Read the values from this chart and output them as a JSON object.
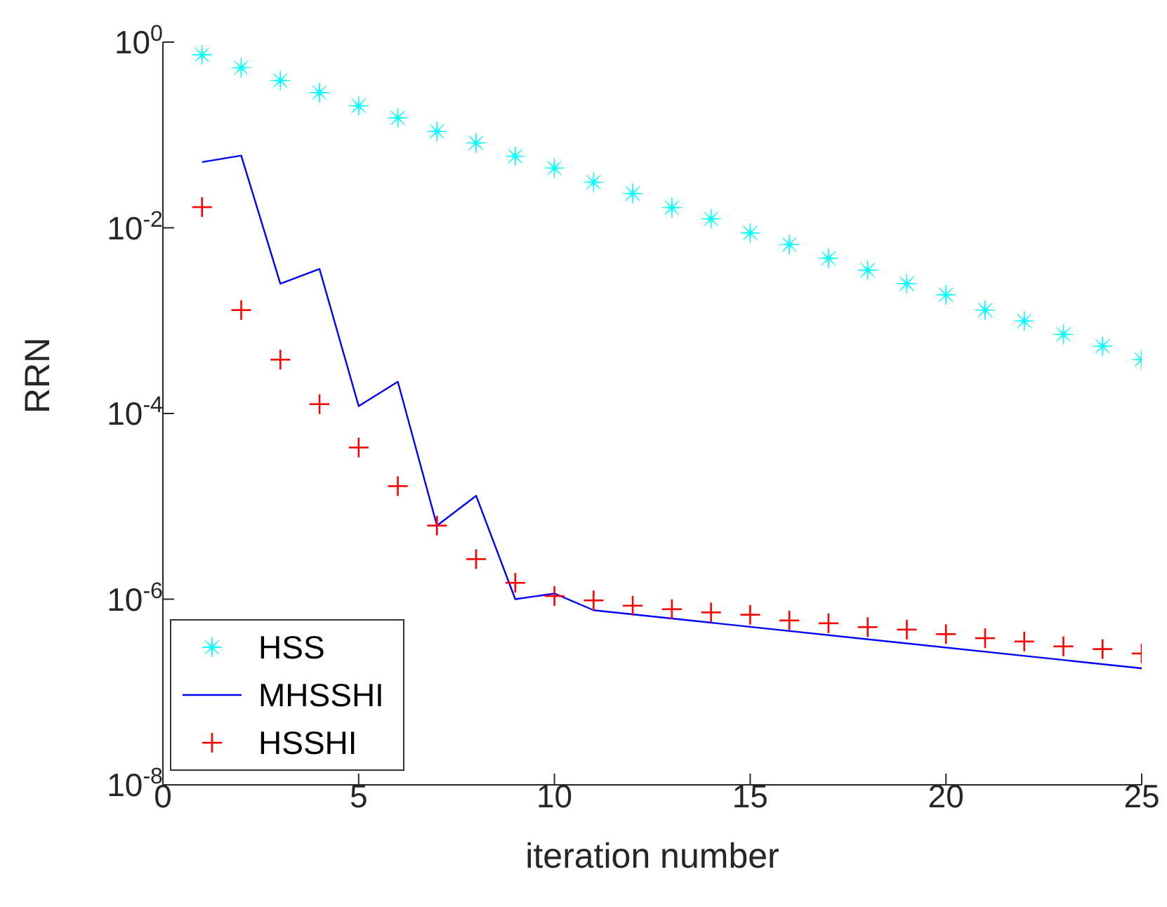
{
  "chart_data": {
    "type": "scatter",
    "xlabel": "iteration number",
    "ylabel": "RRN",
    "xlim": [
      0,
      25
    ],
    "xticks": [
      0,
      5,
      10,
      15,
      20,
      25
    ],
    "ylim": [
      1e-08,
      1
    ],
    "log": "y",
    "yticks": [
      {
        "value": 1e-08,
        "label": "10$^{-8}$"
      },
      {
        "value": 1e-06,
        "label": "10$^{-6}$"
      },
      {
        "value": 0.0001,
        "label": "10$^{-4}$"
      },
      {
        "value": 0.01,
        "label": "10$^{-2}$"
      },
      {
        "value": 1,
        "label": "10$^{0}$"
      }
    ],
    "grid": false,
    "legend": "bottom left",
    "series": [
      {
        "name": "HSS",
        "marker": "star",
        "color": "#00ffff",
        "x": [
          1,
          2,
          3,
          4,
          5,
          6,
          7,
          8,
          9,
          10,
          11,
          12,
          13,
          14,
          15,
          16,
          17,
          18,
          19,
          20,
          21,
          22,
          23,
          24,
          25
        ],
        "values": [
          0.73,
          0.53,
          0.386,
          0.286,
          0.206,
          0.153,
          0.109,
          0.082,
          0.059,
          0.044,
          0.031,
          0.0234,
          0.0165,
          0.0125,
          0.0088,
          0.0066,
          0.0047,
          0.0035,
          0.0025,
          0.0019,
          0.0013,
          0.00099,
          0.00071,
          0.00053,
          0.00038
        ]
      },
      {
        "name": "MHSSHI",
        "type": "line",
        "marker": "none",
        "line_style": "solid",
        "color": "#0000ff",
        "x": [
          1,
          2,
          3,
          4,
          5,
          6,
          7,
          8,
          9,
          10,
          11,
          25
        ],
        "values": [
          0.051,
          0.06,
          0.0025,
          0.0036,
          0.00012,
          0.00022,
          6.2e-06,
          1.3e-05,
          1e-06,
          1.15e-06,
          7.6e-07,
          1.8e-07
        ]
      },
      {
        "name": "HSSHI",
        "marker": "cross",
        "color": "#ff0000",
        "x": [
          1,
          2,
          3,
          4,
          5,
          6,
          7,
          8,
          9,
          10,
          11,
          12,
          13,
          14,
          15,
          16,
          17,
          18,
          19,
          20,
          21,
          22,
          23,
          24,
          25
        ],
        "values": [
          0.0167,
          0.0013,
          0.00038,
          0.000126,
          4.3e-05,
          1.65e-05,
          6.2e-06,
          2.7e-06,
          1.5e-06,
          1.08e-06,
          9.7e-07,
          8.5e-07,
          7.8e-07,
          7.2e-07,
          6.8e-07,
          5.9e-07,
          5.5e-07,
          5e-07,
          4.7e-07,
          4.2e-07,
          3.8e-07,
          3.5e-07,
          3.1e-07,
          2.9e-07,
          2.6e-07
        ]
      }
    ]
  }
}
